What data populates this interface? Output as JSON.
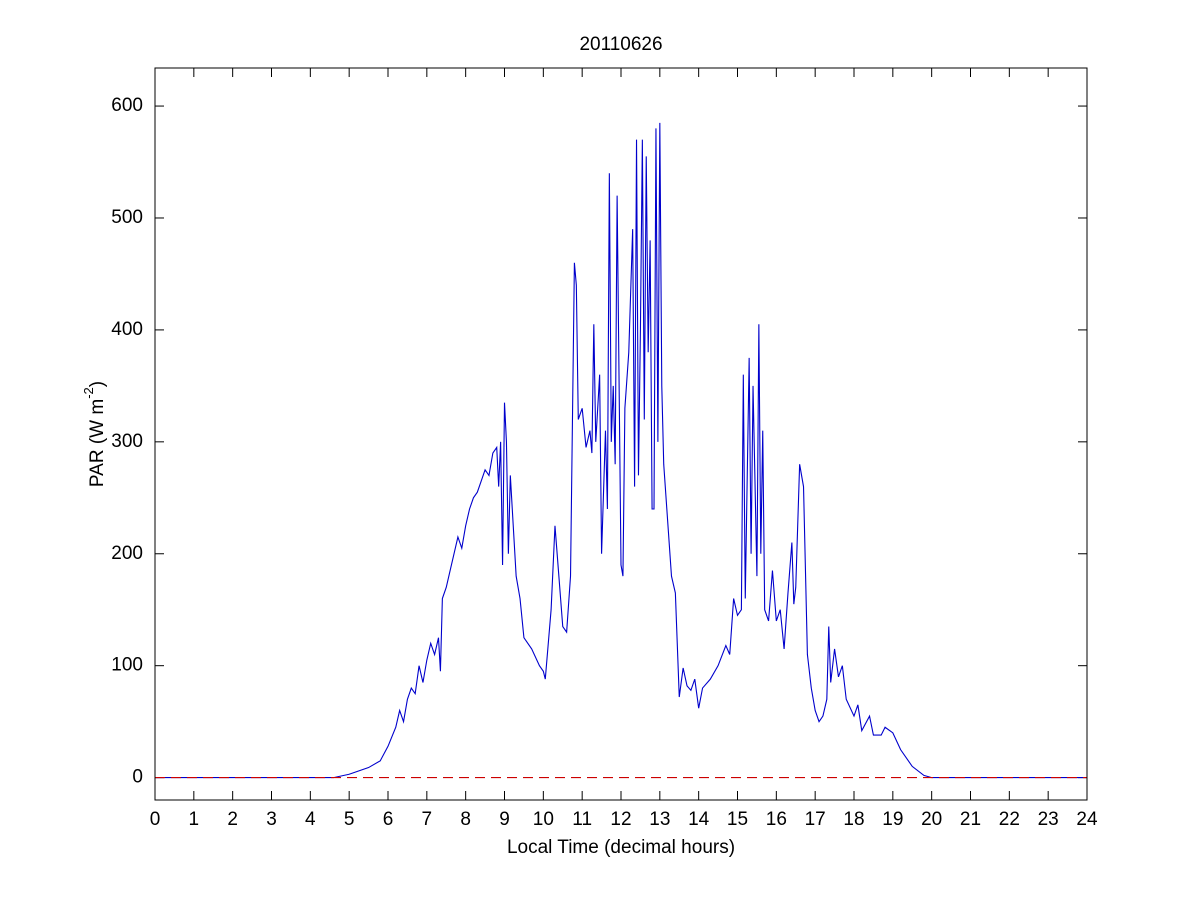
{
  "chart_data": {
    "type": "line",
    "title": "20110626",
    "xlabel": "Local Time (decimal hours)",
    "ylabel": "PAR (W m",
    "ylabel_sup": "-2",
    "ylabel_end": ")",
    "series": [
      {
        "color": "#0000cc",
        "linestyle": "solid",
        "x": [
          0,
          4.6,
          5,
          5.5,
          5.8,
          6.0,
          6.2,
          6.3,
          6.4,
          6.5,
          6.6,
          6.7,
          6.8,
          6.9,
          7.0,
          7.1,
          7.2,
          7.3,
          7.35,
          7.4,
          7.5,
          7.6,
          7.7,
          7.8,
          7.9,
          8.0,
          8.1,
          8.2,
          8.3,
          8.4,
          8.5,
          8.6,
          8.7,
          8.8,
          8.85,
          8.9,
          8.95,
          9.0,
          9.05,
          9.1,
          9.15,
          9.2,
          9.3,
          9.4,
          9.5,
          9.7,
          9.9,
          10.0,
          10.05,
          10.2,
          10.3,
          10.4,
          10.5,
          10.6,
          10.7,
          10.8,
          10.85,
          10.9,
          11.0,
          11.1,
          11.2,
          11.25,
          11.3,
          11.35,
          11.45,
          11.5,
          11.6,
          11.65,
          11.7,
          11.75,
          11.8,
          11.85,
          11.9,
          12.0,
          12.05,
          12.1,
          12.2,
          12.3,
          12.35,
          12.4,
          12.45,
          12.5,
          12.55,
          12.6,
          12.65,
          12.7,
          12.75,
          12.8,
          12.85,
          12.9,
          12.95,
          13.0,
          13.05,
          13.1,
          13.2,
          13.3,
          13.4,
          13.5,
          13.6,
          13.7,
          13.8,
          13.9,
          14.0,
          14.1,
          14.3,
          14.5,
          14.7,
          14.8,
          14.9,
          15.0,
          15.1,
          15.15,
          15.2,
          15.3,
          15.35,
          15.4,
          15.5,
          15.55,
          15.6,
          15.65,
          15.7,
          15.8,
          15.9,
          16.0,
          16.1,
          16.2,
          16.3,
          16.4,
          16.45,
          16.5,
          16.6,
          16.7,
          16.8,
          16.9,
          17.0,
          17.1,
          17.2,
          17.3,
          17.35,
          17.4,
          17.5,
          17.6,
          17.7,
          17.8,
          18.0,
          18.1,
          18.2,
          18.4,
          18.5,
          18.7,
          18.8,
          19.0,
          19.2,
          19.5,
          19.8,
          20.0,
          24
        ],
        "values": [
          0,
          0,
          3,
          9,
          15,
          28,
          45,
          60,
          50,
          70,
          80,
          75,
          100,
          85,
          105,
          120,
          110,
          125,
          95,
          160,
          170,
          185,
          200,
          215,
          205,
          225,
          240,
          250,
          255,
          265,
          275,
          270,
          290,
          295,
          260,
          300,
          190,
          335,
          300,
          200,
          270,
          240,
          180,
          160,
          125,
          115,
          100,
          95,
          88,
          150,
          225,
          180,
          135,
          130,
          180,
          460,
          440,
          320,
          330,
          295,
          310,
          290,
          405,
          300,
          360,
          200,
          310,
          240,
          540,
          300,
          350,
          280,
          520,
          190,
          180,
          330,
          380,
          490,
          260,
          570,
          270,
          400,
          570,
          320,
          555,
          380,
          480,
          240,
          240,
          580,
          300,
          585,
          350,
          280,
          230,
          180,
          165,
          72,
          98,
          82,
          78,
          88,
          62,
          80,
          88,
          100,
          118,
          110,
          160,
          145,
          150,
          360,
          160,
          375,
          200,
          350,
          180,
          405,
          200,
          310,
          150,
          140,
          185,
          140,
          150,
          115,
          165,
          210,
          155,
          170,
          280,
          260,
          110,
          80,
          60,
          50,
          55,
          70,
          135,
          85,
          115,
          90,
          100,
          70,
          55,
          65,
          42,
          55,
          38,
          38,
          45,
          40,
          25,
          10,
          2,
          0,
          0
        ]
      },
      {
        "color": "#cc0000",
        "linestyle": "dashed",
        "x": [
          0,
          24
        ],
        "values": [
          0,
          0
        ]
      }
    ],
    "xlim": [
      0,
      24
    ],
    "xticks": [
      0,
      1,
      2,
      3,
      4,
      5,
      6,
      7,
      8,
      9,
      10,
      11,
      12,
      13,
      14,
      15,
      16,
      17,
      18,
      19,
      20,
      21,
      22,
      23,
      24
    ],
    "ylim": [
      -20,
      634
    ],
    "yticks": [
      0,
      100,
      200,
      300,
      400,
      500,
      600
    ],
    "grid": false
  }
}
